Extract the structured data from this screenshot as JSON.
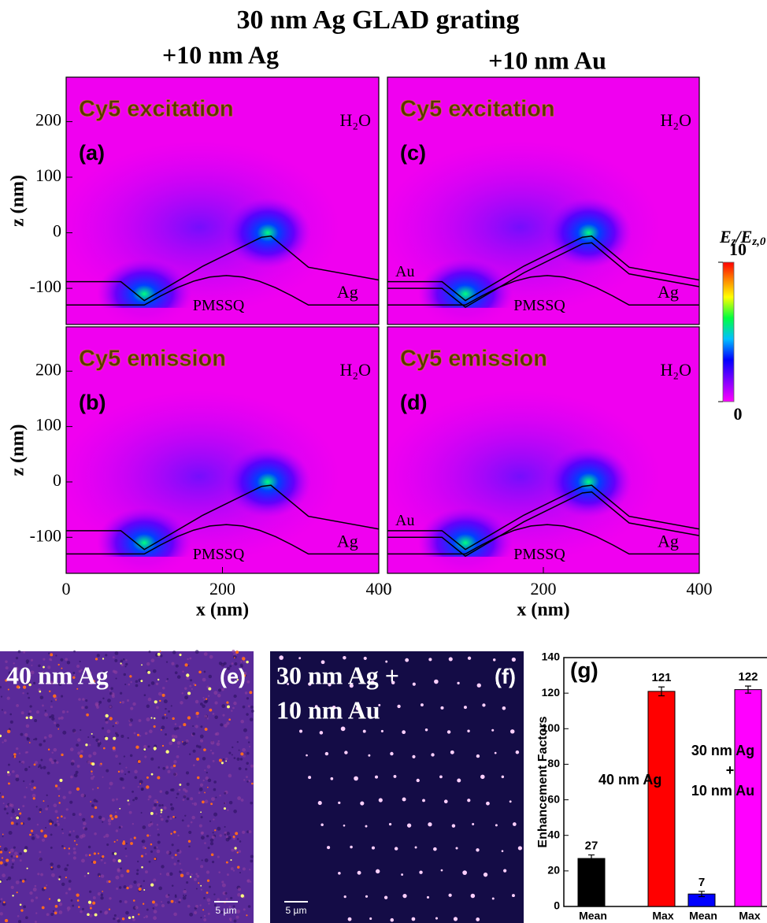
{
  "title": "30 nm Ag GLAD grating",
  "column_titles": [
    "+10 nm Ag",
    "+10 nm Au"
  ],
  "colorbar": {
    "label": [
      {
        "text": "E"
      },
      {
        "text": "z",
        "sub": true
      },
      {
        "text": "/E"
      },
      {
        "text": "z,0",
        "sub": true
      }
    ],
    "lim": [
      0,
      10
    ],
    "ticks": [
      0,
      10
    ]
  },
  "images": [
    {
      "caption": [
        "40 nm Ag"
      ],
      "panel_label": "(e)",
      "scalebar": "5 µm"
    },
    {
      "caption": [
        "30 nm Ag +",
        "10 nm Au"
      ],
      "panel_label": "(f)",
      "scalebar": "5 µm"
    }
  ],
  "chart_data": [
    {
      "type": "heatmap",
      "heading": "Cy5 excitation",
      "panel_label": "(a)",
      "regions": [
        "H₂O",
        "PMSSQ",
        "Ag"
      ],
      "xlim": [
        0,
        400
      ],
      "ylim": [
        -165,
        280
      ],
      "yticks": [
        -100,
        0,
        100,
        200
      ],
      "ylabel": "z (nm)"
    },
    {
      "type": "heatmap",
      "heading": "Cy5 emission",
      "panel_label": "(b)",
      "regions": [
        "H₂O",
        "PMSSQ",
        "Ag"
      ],
      "xlim": [
        0,
        400
      ],
      "ylim": [
        -165,
        280
      ],
      "xticks": [
        0,
        200,
        400
      ],
      "yticks": [
        -100,
        0,
        100,
        200
      ],
      "xlabel": "x (nm)",
      "ylabel": "z (nm)"
    },
    {
      "type": "heatmap",
      "heading": "Cy5 excitation",
      "panel_label": "(c)",
      "regions": [
        "H₂O",
        "PMSSQ",
        "Ag",
        "Au"
      ],
      "xlim": [
        0,
        400
      ],
      "ylim": [
        -165,
        280
      ]
    },
    {
      "type": "heatmap",
      "heading": "Cy5 emission",
      "panel_label": "(d)",
      "regions": [
        "H₂O",
        "PMSSQ",
        "Ag",
        "Au"
      ],
      "xlim": [
        0,
        400
      ],
      "ylim": [
        -165,
        280
      ],
      "xticks": [
        0,
        200,
        400
      ],
      "xlabel": "x (nm)"
    },
    {
      "type": "bar",
      "categories": [
        "Mean",
        "Max",
        "Mean",
        "Max"
      ],
      "values": [
        27,
        121,
        7,
        122
      ],
      "errors": [
        2,
        2.5,
        1.5,
        2
      ],
      "colors": [
        "#000000",
        "#ff0000",
        "#0000ff",
        "#ff00ff"
      ],
      "ylabel": "Enhancement Factors",
      "ylim": [
        0,
        140
      ],
      "yticks": [
        0,
        20,
        40,
        60,
        80,
        100,
        120,
        140
      ],
      "annotations": [
        "(g)",
        "40 nm Ag",
        "30 nm Ag",
        "+",
        "10 nm Au"
      ]
    }
  ]
}
